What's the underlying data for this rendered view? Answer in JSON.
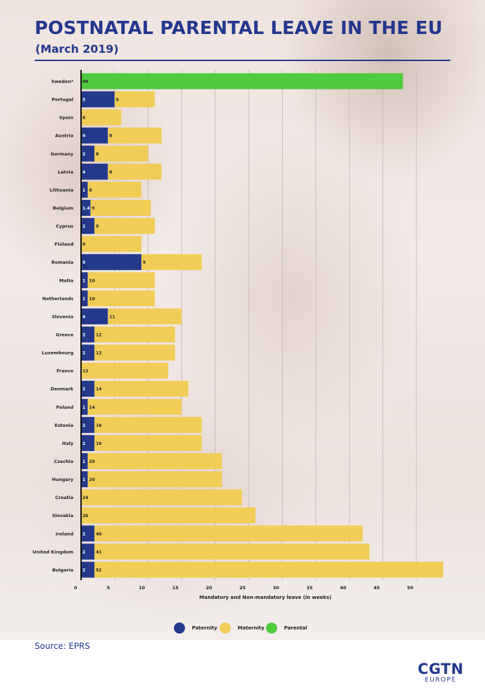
{
  "title": "POSTNATAL PARENTAL LEAVE IN THE EU",
  "subtitle": "(March 2019)",
  "source": "Source: EPRS",
  "logo": {
    "main": "CGTN",
    "sub": "EUROPE"
  },
  "colors": {
    "title": "#23378f",
    "paternity": "#24398c",
    "maternity": "#f1cd57",
    "parental": "#4fcb3f"
  },
  "legend": [
    {
      "key": "paternity",
      "label": "Paternity"
    },
    {
      "key": "maternity",
      "label": "Maternity"
    },
    {
      "key": "parental",
      "label": "Parental"
    }
  ],
  "chart_data": {
    "type": "bar",
    "orientation": "horizontal",
    "stacked": true,
    "xlabel": "Mandatory and Non-mandatory leave (in weeks)",
    "xlim": [
      0,
      54
    ],
    "xticks": [
      0,
      5,
      10,
      15,
      20,
      25,
      30,
      35,
      40,
      45,
      50
    ],
    "grid": true,
    "legend_position": "bottom",
    "categories": [
      "Sweden*",
      "Portugal",
      "Spain",
      "Austria",
      "Germany",
      "Latvia",
      "Lithuania",
      "Belgium",
      "Cyprus",
      "Finland",
      "Romania",
      "Malta",
      "Netherlands",
      "Slovenia",
      "Greece",
      "Luxembourg",
      "France",
      "Denmark",
      "Poland",
      "Estonia",
      "Italy",
      "Czechia",
      "Hungary",
      "Croatia",
      "Slovakia",
      "Ireland",
      "United Kingdom",
      "Bulgaria"
    ],
    "series": [
      {
        "name": "Paternity",
        "key": "paternity",
        "values": [
          null,
          5,
          null,
          4,
          2,
          4,
          1,
          1.4,
          2,
          null,
          9,
          1,
          1,
          4,
          2,
          2,
          null,
          2,
          1,
          2,
          2,
          1,
          1,
          null,
          null,
          2,
          2,
          2
        ]
      },
      {
        "name": "Maternity",
        "key": "maternity",
        "values": [
          null,
          6,
          6,
          8,
          8,
          8,
          8,
          9,
          9,
          9,
          9,
          10,
          10,
          11,
          12,
          12,
          13,
          14,
          14,
          16,
          16,
          20,
          20,
          24,
          26,
          40,
          41,
          52
        ]
      },
      {
        "name": "Parental",
        "key": "parental",
        "values": [
          48,
          null,
          null,
          null,
          null,
          null,
          null,
          null,
          null,
          null,
          null,
          null,
          null,
          null,
          null,
          null,
          null,
          null,
          null,
          null,
          null,
          null,
          null,
          null,
          null,
          null,
          null,
          null
        ]
      }
    ]
  }
}
